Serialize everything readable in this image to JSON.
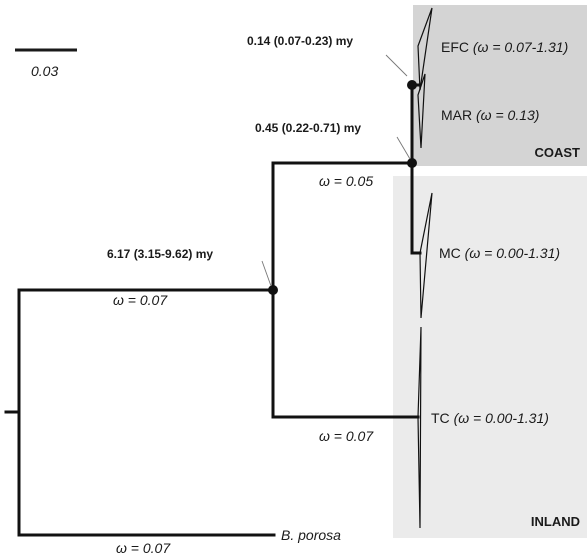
{
  "scale_bar": {
    "label": "0.03"
  },
  "regions": {
    "coast": {
      "label": "COAST",
      "color": "#d4d4d4"
    },
    "inland": {
      "label": "INLAND",
      "color": "#ebebeb"
    }
  },
  "nodes": {
    "root": {
      "age": "6.17 (3.15-9.62) my"
    },
    "coast_mc": {
      "age": "0.45 (0.22-0.71) my"
    },
    "efc_mar": {
      "age": "0.14 (0.07-0.23) my"
    }
  },
  "branch_omegas": {
    "inland_stem": "ω = 0.05",
    "ingroup_stem": "ω = 0.07",
    "tc_stem": "ω = 0.07",
    "outgroup": "ω = 0.07"
  },
  "taxa": {
    "efc": {
      "name": "EFC",
      "omega": "(ω = 0.07-1.31)"
    },
    "mar": {
      "name": "MAR",
      "omega": "(ω = 0.13)"
    },
    "mc": {
      "name": "MC",
      "omega": "(ω = 0.00-1.31)"
    },
    "tc": {
      "name": "TC",
      "omega": "(ω = 0.00-1.31)"
    },
    "outgroup": {
      "name": "B. porosa"
    }
  }
}
